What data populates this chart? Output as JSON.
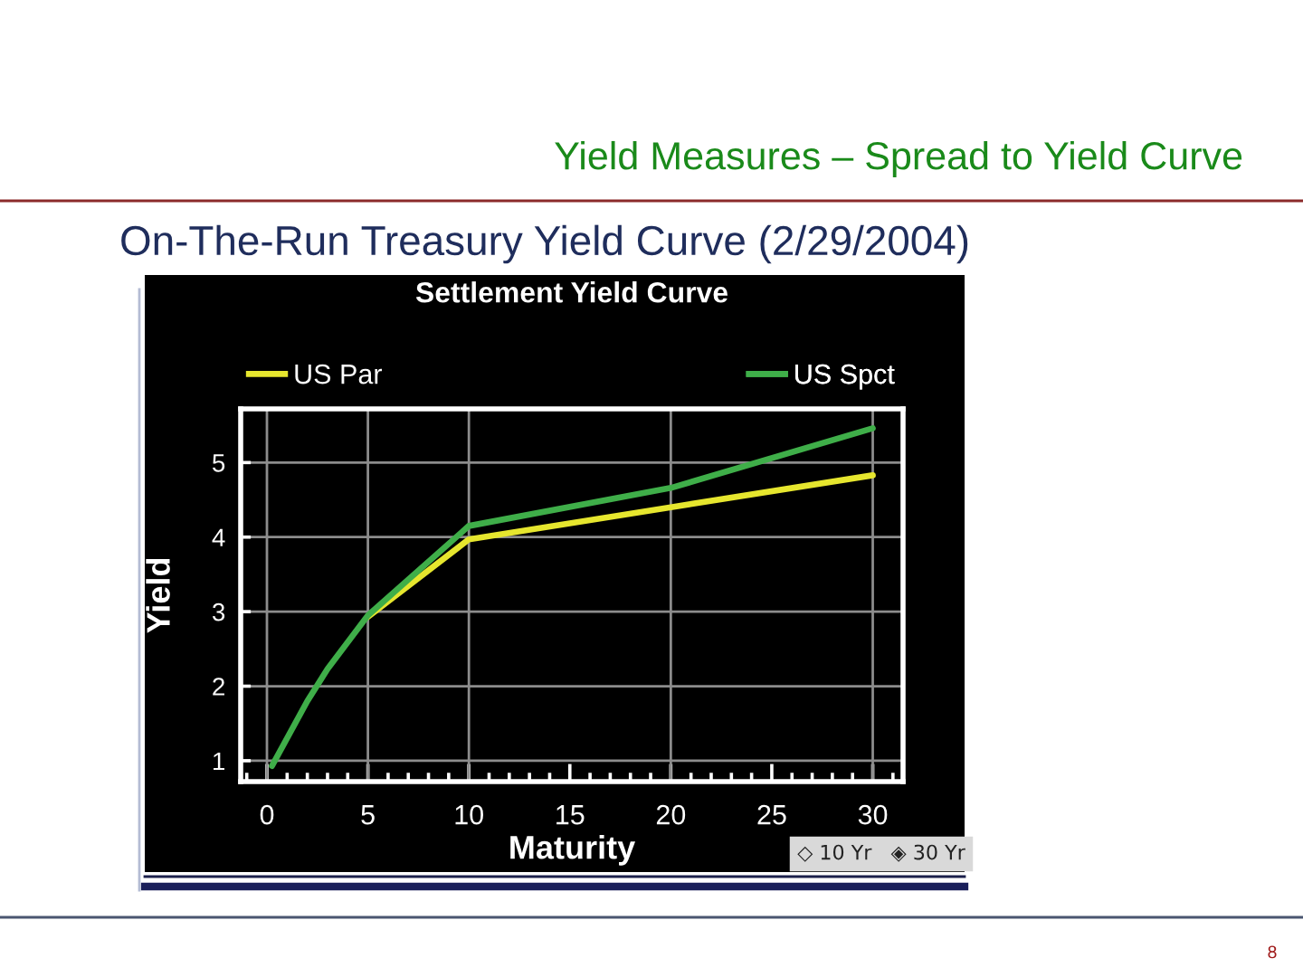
{
  "chart_data": {
    "type": "line",
    "title": "Yield Measures – Spread to Yield Curve",
    "subtitle": "On-The-Run Treasury Yield Curve (2/29/2004)",
    "xlabel": "Maturity",
    "ylabel": "Yield",
    "annotations": [
      "Settlement Yield Curve",
      "◇ 10 Yr   ◈ 30 Yr",
      "8"
    ],
    "series": [
      {
        "name": "US Par",
        "color": "#e6e62e",
        "x": [
          5,
          10,
          20,
          30
        ],
        "values": [
          2.93,
          3.97,
          4.4,
          4.83
        ]
      },
      {
        "name": "US Spct",
        "color": "#3fae49",
        "x": [
          0.25,
          2,
          3,
          5,
          10,
          20,
          30
        ],
        "values": [
          0.93,
          1.8,
          2.23,
          2.95,
          4.15,
          4.66,
          5.46
        ]
      }
    ],
    "xlim": [
      -1.3,
      31.5
    ],
    "ylim": [
      0.72,
      5.72
    ],
    "xticks": [
      {
        "value": -1,
        "label": null
      },
      0,
      {
        "value": 1,
        "label": null
      },
      {
        "value": 2,
        "label": null
      },
      {
        "value": 3,
        "label": null
      },
      {
        "value": 4,
        "label": null
      },
      5,
      {
        "value": 6,
        "label": null
      },
      {
        "value": 7,
        "label": null
      },
      {
        "value": 8,
        "label": null
      },
      {
        "value": 9,
        "label": null
      },
      10,
      {
        "value": 11,
        "label": null
      },
      {
        "value": 12,
        "label": null
      },
      {
        "value": 13,
        "label": null
      },
      {
        "value": 14,
        "label": null
      },
      15,
      {
        "value": 16,
        "label": null
      },
      {
        "value": 17,
        "label": null
      },
      {
        "value": 18,
        "label": null
      },
      {
        "value": 19,
        "label": null
      },
      20,
      {
        "value": 21,
        "label": null
      },
      {
        "value": 22,
        "label": null
      },
      {
        "value": 23,
        "label": null
      },
      {
        "value": 24,
        "label": null
      },
      25,
      {
        "value": 26,
        "label": null
      },
      {
        "value": 27,
        "label": null
      },
      {
        "value": 28,
        "label": null
      },
      {
        "value": 29,
        "label": null
      },
      30,
      {
        "value": 31,
        "label": null
      }
    ],
    "yticks": [
      1,
      2,
      3,
      4,
      5
    ],
    "grid": "y",
    "ref_lines": [
      {
        "axis": "x",
        "value": 0,
        "color": "#8c8c8c"
      },
      {
        "axis": "x",
        "value": 5,
        "color": "#8c8c8c"
      },
      {
        "axis": "x",
        "value": 10,
        "color": "#8c8c8c"
      },
      {
        "axis": "x",
        "value": 20,
        "color": "#8c8c8c"
      },
      {
        "axis": "x",
        "value": 30,
        "color": "#8c8c8c"
      }
    ],
    "legend": "top"
  }
}
